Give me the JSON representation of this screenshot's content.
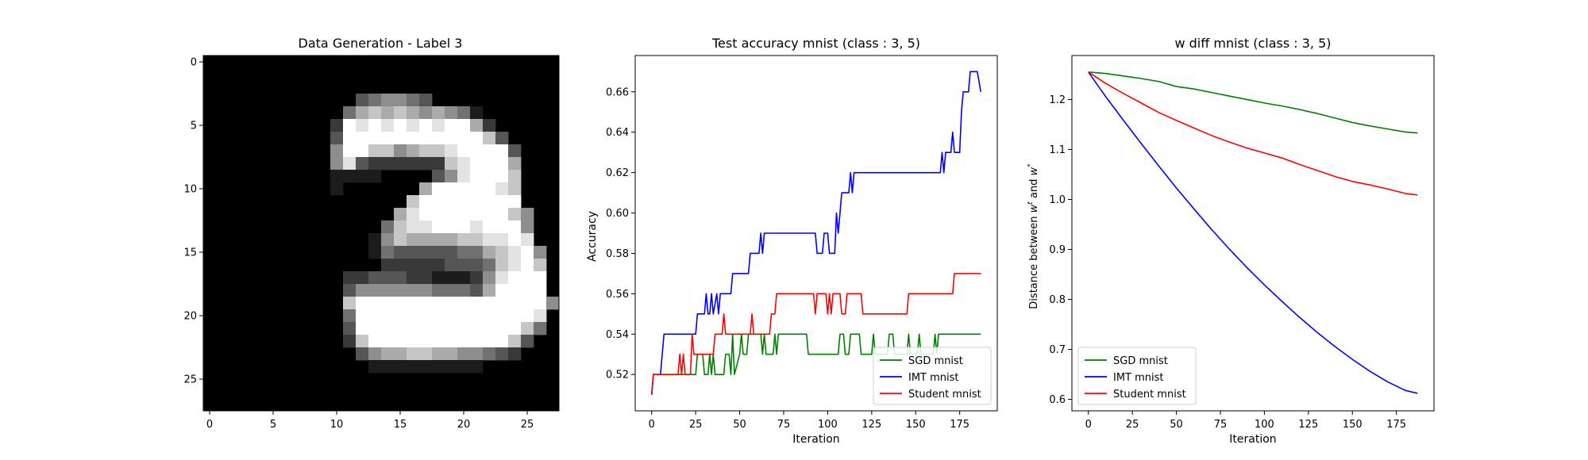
{
  "chart_data": [
    {
      "type": "heatmap",
      "title": "Data Generation - Label 3",
      "xlim": [
        -0.5,
        27.5
      ],
      "ylim": [
        27.5,
        -0.5
      ],
      "xticks": [
        "0",
        "5",
        "10",
        "15",
        "20",
        "25"
      ],
      "yticks": [
        "0",
        "5",
        "10",
        "15",
        "20",
        "25"
      ],
      "colormap": "gray",
      "image_width": 28,
      "image_height": 28,
      "pixels": [
        {
          "row": 3,
          "values": "0000000000003455430000000000"
        },
        {
          "row": 4,
          "values": "0000000000046767656541000000"
        },
        {
          "row": 5,
          "values": "0000000000298989898996200000"
        },
        {
          "row": 6,
          "values": "0000000000399999999999730000"
        },
        {
          "row": 7,
          "values": "0000000000599775677899993000"
        },
        {
          "row": 8,
          "values": "0000000000583222222789996000"
        },
        {
          "row": 9,
          "values": "0000000000111100003589997000"
        },
        {
          "row": 10,
          "values": "0000000000100000069999987000"
        },
        {
          "row": 11,
          "values": "0000000000000000799999999000"
        },
        {
          "row": 12,
          "values": "0000000000000006899999997500"
        },
        {
          "row": 13,
          "values": "0000000000000047889998999500"
        },
        {
          "row": 14,
          "values": "0000000000000157666677889800"
        },
        {
          "row": 15,
          "values": "0000000000000143333344678950"
        },
        {
          "row": 16,
          "values": "0000000000000022222333478970"
        },
        {
          "row": 17,
          "values": "0000000000022333221112589990"
        },
        {
          "row": 18,
          "values": "0000000000035555554443699990"
        },
        {
          "row": 19,
          "values": "0000000000079999999999999995"
        },
        {
          "row": 20,
          "values": "0000000000049999999999999980"
        },
        {
          "row": 21,
          "values": "0000000000039999999999999740"
        },
        {
          "row": 22,
          "values": "0000000000027999999999997300"
        },
        {
          "row": 23,
          "values": "0000000000003566776655432000"
        },
        {
          "row": 24,
          "values": "0000000000000111111111000000"
        }
      ]
    },
    {
      "type": "line",
      "title": "Test accuracy mnist (class : 3, 5)",
      "xlabel": "Iteration",
      "ylabel": "Accuracy",
      "xlim": [
        -9.35,
        196.35
      ],
      "ylim": [
        0.502,
        0.678
      ],
      "xticks": [
        0,
        25,
        50,
        75,
        100,
        125,
        150,
        175
      ],
      "yticks": [
        0.52,
        0.54,
        0.56,
        0.58,
        0.6,
        0.62,
        0.64,
        0.66
      ],
      "legend_position": "lower right",
      "legend": [
        "SGD mnist",
        "IMT mnist",
        "Student mnist"
      ],
      "series": [
        {
          "name": "SGD mnist",
          "color": "#008000",
          "points": [
            [
              0,
              0.51
            ],
            [
              1,
              0.52
            ],
            [
              25,
              0.52
            ],
            [
              26,
              0.53
            ],
            [
              29,
              0.53
            ],
            [
              30,
              0.52
            ],
            [
              32,
              0.52
            ],
            [
              33,
              0.53
            ],
            [
              34,
              0.52
            ],
            [
              35,
              0.53
            ],
            [
              36,
              0.52
            ],
            [
              41,
              0.52
            ],
            [
              42,
              0.53
            ],
            [
              44,
              0.53
            ],
            [
              45,
              0.52
            ],
            [
              46,
              0.54
            ],
            [
              47,
              0.52
            ],
            [
              50,
              0.53
            ],
            [
              51,
              0.54
            ],
            [
              52,
              0.53
            ],
            [
              54,
              0.53
            ],
            [
              55,
              0.54
            ],
            [
              62,
              0.54
            ],
            [
              63,
              0.53
            ],
            [
              64,
              0.54
            ],
            [
              65,
              0.53
            ],
            [
              69,
              0.53
            ],
            [
              70,
              0.54
            ],
            [
              71,
              0.53
            ],
            [
              72,
              0.54
            ],
            [
              88,
              0.54
            ],
            [
              89,
              0.53
            ],
            [
              106,
              0.53
            ],
            [
              107,
              0.54
            ],
            [
              109,
              0.54
            ],
            [
              110,
              0.53
            ],
            [
              112,
              0.53
            ],
            [
              113,
              0.54
            ],
            [
              118,
              0.54
            ],
            [
              119,
              0.53
            ],
            [
              125,
              0.53
            ],
            [
              126,
              0.54
            ],
            [
              127,
              0.53
            ],
            [
              134,
              0.53
            ],
            [
              135,
              0.54
            ],
            [
              137,
              0.54
            ],
            [
              138,
              0.53
            ],
            [
              145,
              0.53
            ],
            [
              146,
              0.54
            ],
            [
              147,
              0.53
            ],
            [
              151,
              0.53
            ],
            [
              152,
              0.54
            ],
            [
              153,
              0.53
            ],
            [
              160,
              0.53
            ],
            [
              161,
              0.54
            ],
            [
              162,
              0.53
            ],
            [
              163,
              0.54
            ],
            [
              187,
              0.54
            ]
          ]
        },
        {
          "name": "IMT mnist",
          "color": "#0000ff",
          "points": [
            [
              0,
              0.51
            ],
            [
              1,
              0.52
            ],
            [
              5,
              0.52
            ],
            [
              6,
              0.53
            ],
            [
              7,
              0.54
            ],
            [
              25,
              0.54
            ],
            [
              26,
              0.55
            ],
            [
              30,
              0.55
            ],
            [
              31,
              0.56
            ],
            [
              32,
              0.55
            ],
            [
              33,
              0.55
            ],
            [
              34,
              0.56
            ],
            [
              35,
              0.55
            ],
            [
              37,
              0.56
            ],
            [
              38,
              0.55
            ],
            [
              39,
              0.56
            ],
            [
              45,
              0.56
            ],
            [
              46,
              0.57
            ],
            [
              55,
              0.57
            ],
            [
              56,
              0.58
            ],
            [
              61,
              0.58
            ],
            [
              62,
              0.59
            ],
            [
              63,
              0.58
            ],
            [
              64,
              0.59
            ],
            [
              93,
              0.59
            ],
            [
              94,
              0.58
            ],
            [
              97,
              0.58
            ],
            [
              98,
              0.59
            ],
            [
              100,
              0.59
            ],
            [
              101,
              0.58
            ],
            [
              104,
              0.58
            ],
            [
              105,
              0.6
            ],
            [
              106,
              0.59
            ],
            [
              107,
              0.6
            ],
            [
              108,
              0.61
            ],
            [
              112,
              0.61
            ],
            [
              113,
              0.62
            ],
            [
              114,
              0.61
            ],
            [
              115,
              0.62
            ],
            [
              164,
              0.62
            ],
            [
              165,
              0.63
            ],
            [
              166,
              0.62
            ],
            [
              167,
              0.63
            ],
            [
              170,
              0.63
            ],
            [
              171,
              0.64
            ],
            [
              172,
              0.63
            ],
            [
              175,
              0.63
            ],
            [
              176,
              0.65
            ],
            [
              177,
              0.66
            ],
            [
              180,
              0.66
            ],
            [
              181,
              0.67
            ],
            [
              185,
              0.67
            ],
            [
              187,
              0.66
            ]
          ]
        },
        {
          "name": "Student mnist",
          "color": "#ff0000",
          "points": [
            [
              0,
              0.51
            ],
            [
              1,
              0.52
            ],
            [
              15,
              0.52
            ],
            [
              16,
              0.53
            ],
            [
              17,
              0.52
            ],
            [
              18,
              0.53
            ],
            [
              19,
              0.52
            ],
            [
              22,
              0.52
            ],
            [
              23,
              0.54
            ],
            [
              24,
              0.53
            ],
            [
              35,
              0.53
            ],
            [
              36,
              0.54
            ],
            [
              40,
              0.54
            ],
            [
              41,
              0.55
            ],
            [
              42,
              0.54
            ],
            [
              56,
              0.54
            ],
            [
              57,
              0.55
            ],
            [
              58,
              0.54
            ],
            [
              67,
              0.54
            ],
            [
              68,
              0.55
            ],
            [
              70,
              0.55
            ],
            [
              71,
              0.56
            ],
            [
              92,
              0.56
            ],
            [
              93,
              0.55
            ],
            [
              94,
              0.56
            ],
            [
              99,
              0.56
            ],
            [
              100,
              0.55
            ],
            [
              101,
              0.56
            ],
            [
              102,
              0.55
            ],
            [
              103,
              0.56
            ],
            [
              107,
              0.56
            ],
            [
              108,
              0.55
            ],
            [
              110,
              0.55
            ],
            [
              111,
              0.56
            ],
            [
              119,
              0.56
            ],
            [
              120,
              0.55
            ],
            [
              145,
              0.55
            ],
            [
              146,
              0.56
            ],
            [
              171,
              0.56
            ],
            [
              172,
              0.57
            ],
            [
              187,
              0.57
            ]
          ]
        }
      ]
    },
    {
      "type": "line",
      "title": "w diff mnist (class : 3, 5)",
      "xlabel": "Iteration",
      "ylabel": "Distance between w^t and w^*",
      "ylabel_parts": {
        "prefix": "Distance between ",
        "w1": "w",
        "sup1": "t",
        "mid": " and ",
        "w2": "w",
        "sup2": "*"
      },
      "xlim": [
        -9.35,
        196.35
      ],
      "ylim": [
        0.577,
        1.288
      ],
      "xticks": [
        0,
        25,
        50,
        75,
        100,
        125,
        150,
        175
      ],
      "yticks": [
        0.6,
        0.7,
        0.8,
        0.9,
        1.0,
        1.1,
        1.2
      ],
      "legend_position": "lower left",
      "legend": [
        "SGD mnist",
        "IMT mnist",
        "Student mnist"
      ],
      "series": [
        {
          "name": "SGD mnist",
          "color": "#008000",
          "points": [
            [
              0,
              1.255
            ],
            [
              10,
              1.252
            ],
            [
              20,
              1.247
            ],
            [
              30,
              1.242
            ],
            [
              40,
              1.236
            ],
            [
              50,
              1.226
            ],
            [
              60,
              1.221
            ],
            [
              70,
              1.214
            ],
            [
              80,
              1.207
            ],
            [
              90,
              1.2
            ],
            [
              100,
              1.193
            ],
            [
              110,
              1.187
            ],
            [
              120,
              1.18
            ],
            [
              130,
              1.172
            ],
            [
              140,
              1.163
            ],
            [
              150,
              1.154
            ],
            [
              160,
              1.147
            ],
            [
              170,
              1.141
            ],
            [
              180,
              1.135
            ],
            [
              187,
              1.133
            ]
          ]
        },
        {
          "name": "IMT mnist",
          "color": "#0000ff",
          "points": [
            [
              0,
              1.255
            ],
            [
              10,
              1.205
            ],
            [
              20,
              1.158
            ],
            [
              30,
              1.112
            ],
            [
              40,
              1.067
            ],
            [
              50,
              1.023
            ],
            [
              60,
              0.981
            ],
            [
              70,
              0.94
            ],
            [
              80,
              0.901
            ],
            [
              90,
              0.864
            ],
            [
              100,
              0.829
            ],
            [
              110,
              0.796
            ],
            [
              120,
              0.764
            ],
            [
              130,
              0.734
            ],
            [
              140,
              0.706
            ],
            [
              150,
              0.68
            ],
            [
              160,
              0.656
            ],
            [
              170,
              0.635
            ],
            [
              180,
              0.618
            ],
            [
              187,
              0.612
            ]
          ]
        },
        {
          "name": "Student mnist",
          "color": "#ff0000",
          "points": [
            [
              0,
              1.255
            ],
            [
              10,
              1.232
            ],
            [
              20,
              1.212
            ],
            [
              30,
              1.193
            ],
            [
              40,
              1.174
            ],
            [
              50,
              1.158
            ],
            [
              60,
              1.143
            ],
            [
              70,
              1.128
            ],
            [
              80,
              1.115
            ],
            [
              90,
              1.103
            ],
            [
              100,
              1.093
            ],
            [
              110,
              1.083
            ],
            [
              120,
              1.07
            ],
            [
              130,
              1.058
            ],
            [
              140,
              1.046
            ],
            [
              150,
              1.036
            ],
            [
              160,
              1.029
            ],
            [
              170,
              1.021
            ],
            [
              180,
              1.012
            ],
            [
              187,
              1.009
            ]
          ]
        }
      ]
    }
  ]
}
